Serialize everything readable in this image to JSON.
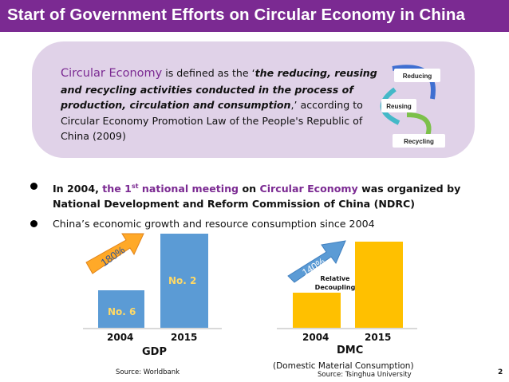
{
  "slide": {
    "title": "Start of Government Efforts on Circular Economy in China",
    "page_number": "2",
    "colors": {
      "accent": "#7b2a92",
      "box": "#e0d2e8",
      "gdp_bar": "#5b9bd5",
      "dmc_bar": "#ffc000",
      "arrow": "#ffa928"
    }
  },
  "definition": {
    "term": "Circular Economy",
    "lead": " is defined as the ‘",
    "quote": "the reducing, reusing and recycling activities conducted in the process of production, circulation and consumption",
    "tail": ",’ according to Circular Economy Promotion Law of the People's  Republic of China (2009)"
  },
  "cycle": {
    "items": [
      "Reducing",
      "Reusing",
      "Recycling"
    ]
  },
  "bullets": [
    {
      "p1": "In 2004, ",
      "p2": "the 1",
      "sup": "st",
      "p3": " national meeting",
      "p4": " on ",
      "p5": "Circular Economy",
      "p6": " was organized by National Development and Reform Commission of China (NDRC)"
    },
    {
      "text": "China’s economic growth and resource consumption since 2004"
    }
  ],
  "gdp": {
    "title": "GDP",
    "categories": [
      "2004",
      "2015"
    ],
    "bar_labels": [
      "No. 6",
      "No. 2"
    ],
    "growth_label": "180%",
    "source": "Source: Worldbank"
  },
  "dmc": {
    "title": "DMC",
    "subtitle": "(Domestic Material Consumption)",
    "categories": [
      "2004",
      "2015"
    ],
    "growth_label": "140%",
    "annotation_line1": "Relative",
    "annotation_line2": "Decoupling",
    "source": "Source: Tsinghua University"
  }
}
